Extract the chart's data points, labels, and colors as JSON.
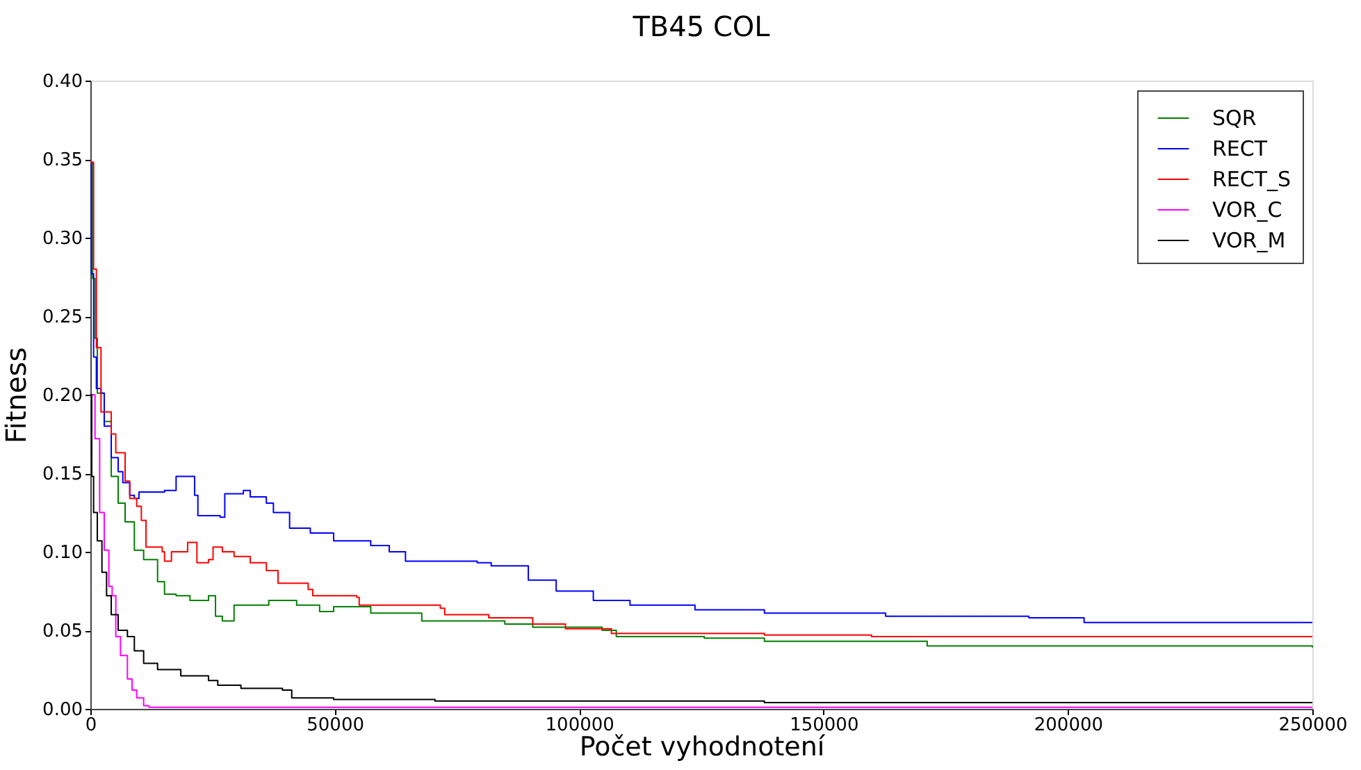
{
  "chart_data": {
    "type": "step",
    "title": "TB45 COL",
    "xlabel": "Počet vyhodnotení",
    "ylabel": "Fitness",
    "xlim": [
      0,
      250000
    ],
    "xticks": [
      0,
      50000,
      100000,
      150000,
      200000,
      250000
    ],
    "ylim": [
      0,
      0.4
    ],
    "yticks": [
      {
        "value": 0,
        "label": "0.00"
      },
      {
        "value": 0.05,
        "label": "0.05"
      },
      {
        "value": 0.1,
        "label": "0.10"
      },
      {
        "value": 0.15,
        "label": "0.15"
      },
      {
        "value": 0.2,
        "label": "0.20"
      },
      {
        "value": 0.25,
        "label": "0.25"
      },
      {
        "value": 0.3,
        "label": "0.30"
      },
      {
        "value": 0.35,
        "label": "0.35"
      },
      {
        "value": 0.4,
        "label": "0.40"
      }
    ],
    "grid": false,
    "legend": "top right",
    "series": [
      {
        "name": "SQR",
        "color": "#008000",
        "x": [
          0,
          470,
          950,
          1422,
          2844,
          4266,
          5688,
          7110,
          9000,
          10900,
          13750,
          15170,
          17540,
          20380,
          24170,
          25600,
          27000,
          29400,
          36500,
          42200,
          46900,
          49770,
          57360,
          67800,
          84800,
          90500,
          104700,
          107600,
          125600,
          137900,
          171200,
          250000
        ],
        "values": [
          0.348,
          0.274,
          0.236,
          0.201,
          0.183,
          0.148,
          0.131,
          0.119,
          0.101,
          0.095,
          0.081,
          0.073,
          0.072,
          0.069,
          0.072,
          0.059,
          0.056,
          0.066,
          0.069,
          0.066,
          0.062,
          0.065,
          0.061,
          0.056,
          0.054,
          0.052,
          0.05,
          0.046,
          0.045,
          0.043,
          0.04,
          0.039
        ]
      },
      {
        "name": "RECT",
        "color": "#0000ff",
        "x": [
          0,
          200,
          660,
          1230,
          2180,
          2840,
          4270,
          5690,
          6640,
          8060,
          9000,
          9950,
          15170,
          17540,
          19430,
          21330,
          22000,
          26540,
          27500,
          31300,
          32700,
          36000,
          37450,
          40760,
          45000,
          49770,
          54500,
          57360,
          61150,
          64470,
          79150,
          82000,
          87700,
          89600,
          94300,
          95300,
          102900,
          110400,
          123700,
          137900,
          162700,
          192000,
          203300,
          250000
        ],
        "values": [
          0.348,
          0.277,
          0.224,
          0.204,
          0.201,
          0.18,
          0.16,
          0.151,
          0.144,
          0.136,
          0.134,
          0.138,
          0.139,
          0.148,
          0.148,
          0.136,
          0.123,
          0.122,
          0.137,
          0.139,
          0.135,
          0.131,
          0.125,
          0.115,
          0.112,
          0.107,
          0.107,
          0.104,
          0.1,
          0.094,
          0.093,
          0.091,
          0.091,
          0.082,
          0.082,
          0.075,
          0.069,
          0.066,
          0.063,
          0.061,
          0.059,
          0.058,
          0.055,
          0.055
        ]
      },
      {
        "name": "RECT_S",
        "color": "#ff0000",
        "x": [
          0,
          660,
          1230,
          2180,
          4270,
          5200,
          7110,
          8060,
          9480,
          10430,
          11380,
          14700,
          15170,
          16590,
          19430,
          19900,
          21140,
          21800,
          24170,
          25100,
          27000,
          29400,
          32700,
          36000,
          38400,
          44560,
          45500,
          54500,
          55000,
          71600,
          72500,
          81500,
          90500,
          97200,
          106600,
          137900,
          159800,
          250000
        ],
        "values": [
          0.348,
          0.28,
          0.23,
          0.189,
          0.175,
          0.163,
          0.145,
          0.134,
          0.129,
          0.12,
          0.103,
          0.1,
          0.094,
          0.1,
          0.1,
          0.106,
          0.106,
          0.093,
          0.095,
          0.103,
          0.1,
          0.097,
          0.093,
          0.088,
          0.08,
          0.076,
          0.072,
          0.071,
          0.066,
          0.064,
          0.06,
          0.058,
          0.054,
          0.051,
          0.048,
          0.047,
          0.046,
          0.046
        ]
      },
      {
        "name": "VOR_C",
        "color": "#ff00ff",
        "x": [
          0,
          950,
          1900,
          2840,
          3790,
          4460,
          5210,
          6160,
          7580,
          8530,
          9480,
          10900,
          12000,
          250000
        ],
        "values": [
          0.2,
          0.172,
          0.125,
          0.101,
          0.078,
          0.072,
          0.046,
          0.034,
          0.019,
          0.012,
          0.007,
          0.002,
          0.001,
          0.001
        ]
      },
      {
        "name": "VOR_M",
        "color": "#000000",
        "x": [
          0,
          280,
          660,
          1420,
          2370,
          3320,
          4270,
          5690,
          7580,
          9000,
          10900,
          13750,
          18500,
          24170,
          26070,
          30800,
          39300,
          41200,
          49770,
          70500,
          137900,
          250000
        ],
        "values": [
          0.2,
          0.148,
          0.125,
          0.107,
          0.087,
          0.072,
          0.06,
          0.05,
          0.046,
          0.037,
          0.029,
          0.025,
          0.021,
          0.018,
          0.015,
          0.013,
          0.012,
          0.007,
          0.006,
          0.005,
          0.004,
          0.004
        ]
      }
    ]
  }
}
